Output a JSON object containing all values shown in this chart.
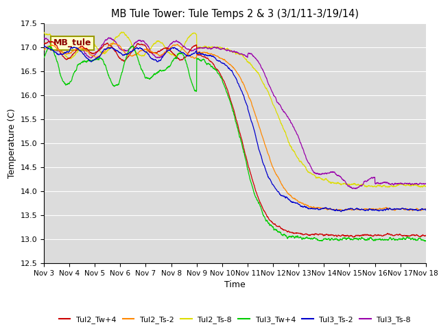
{
  "title": "MB Tule Tower: Tule Temps 2 & 3 (3/1/11-3/19/14)",
  "xlabel": "Time",
  "ylabel": "Temperature (C)",
  "ylim": [
    12.5,
    17.5
  ],
  "xlim": [
    0,
    15
  ],
  "yticks": [
    12.5,
    13.0,
    13.5,
    14.0,
    14.5,
    15.0,
    15.5,
    16.0,
    16.5,
    17.0,
    17.5
  ],
  "xtick_labels": [
    "Nov 3",
    "Nov 4",
    "Nov 5",
    "Nov 6",
    "Nov 7",
    "Nov 8",
    "Nov 9",
    "Nov 10",
    "Nov 11",
    "Nov 12",
    "Nov 13",
    "Nov 14",
    "Nov 15",
    "Nov 16",
    "Nov 17",
    "Nov 18"
  ],
  "annotation_text": "MB_tule",
  "background_color": "#dcdcdc",
  "series_colors": {
    "Tul2_Tw+4": "#cc0000",
    "Tul2_Ts-2": "#ff8800",
    "Tul2_Ts-8": "#dddd00",
    "Tul3_Tw+4": "#00cc00",
    "Tul3_Ts-2": "#0000cc",
    "Tul3_Ts-8": "#9900aa"
  }
}
